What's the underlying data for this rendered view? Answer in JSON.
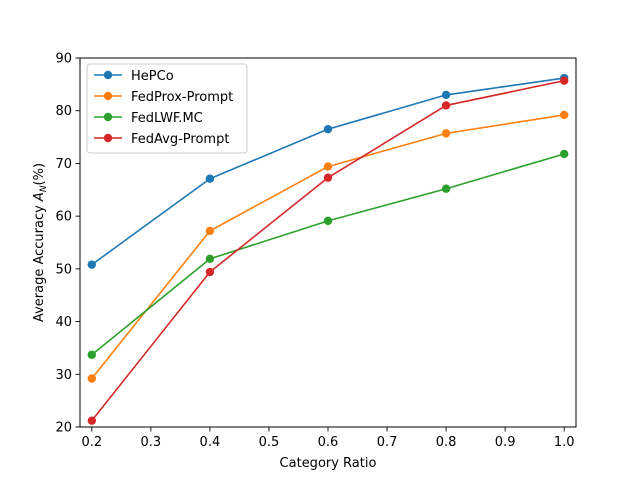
{
  "chart_data": {
    "type": "line",
    "title": "",
    "xlabel": "Category Ratio",
    "ylabel_prefix": "Average Accuracy ",
    "ylabel_symbol": "A",
    "ylabel_subscript": "N",
    "ylabel_suffix": "(%)",
    "xlim": [
      0.18,
      1.02
    ],
    "ylim": [
      20,
      90
    ],
    "xticks": [
      0.2,
      0.3,
      0.4,
      0.5,
      0.6,
      0.7,
      0.8,
      0.9,
      1.0
    ],
    "xtick_labels": [
      "0.2",
      "0.3",
      "0.4",
      "0.5",
      "0.6",
      "0.7",
      "0.8",
      "0.9",
      "1.0"
    ],
    "yticks": [
      20,
      30,
      40,
      50,
      60,
      70,
      80,
      90
    ],
    "ytick_labels": [
      "20",
      "30",
      "40",
      "50",
      "60",
      "70",
      "80",
      "90"
    ],
    "grid": false,
    "legend_position": "top-left",
    "x": [
      0.2,
      0.4,
      0.6,
      0.8,
      1.0
    ],
    "series": [
      {
        "name": "HePCo",
        "color": "#1f77b4",
        "values": [
          50.8,
          67.1,
          76.5,
          83.0,
          86.2
        ]
      },
      {
        "name": "FedProx-Prompt",
        "color": "#ff7f0e",
        "values": [
          29.2,
          57.2,
          69.4,
          75.7,
          79.2
        ]
      },
      {
        "name": "FedLWF.MC",
        "color": "#2ca02c",
        "values": [
          33.7,
          51.9,
          59.1,
          65.2,
          71.8
        ]
      },
      {
        "name": "FedAvg-Prompt",
        "color": "#d62728",
        "values": [
          21.2,
          49.4,
          67.3,
          81.0,
          85.7
        ]
      }
    ]
  }
}
